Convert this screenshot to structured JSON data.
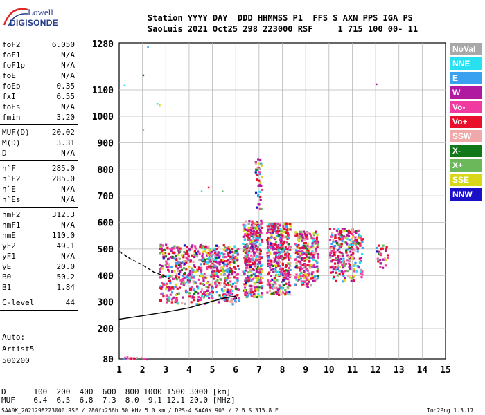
{
  "logo": {
    "line1": "Lowell",
    "line2": "DIGISONDE"
  },
  "header": {
    "line1": "Station YYYY DAY  DDD HHMMSS P1  FFS S AXN PPS IGA PS",
    "line2": "SaoLuis 2021 Oct25 298 223000 RSF     1 715 100 00- 11"
  },
  "params": [
    {
      "group": [
        {
          "name": "foF2",
          "value": "6.050"
        },
        {
          "name": "foF1",
          "value": "N/A"
        },
        {
          "name": "foF1p",
          "value": "N/A"
        },
        {
          "name": "foE",
          "value": "N/A"
        },
        {
          "name": "foEp",
          "value": "0.35"
        },
        {
          "name": "fxI",
          "value": "6.55"
        },
        {
          "name": "foEs",
          "value": "N/A"
        },
        {
          "name": "fmin",
          "value": "3.20"
        }
      ]
    },
    {
      "group": [
        {
          "name": "MUF(D)",
          "value": "20.02"
        },
        {
          "name": "M(D)",
          "value": "3.31"
        },
        {
          "name": "D",
          "value": "N/A"
        }
      ]
    },
    {
      "group": [
        {
          "name": "h`F",
          "value": "285.0"
        },
        {
          "name": "h`F2",
          "value": "285.0"
        },
        {
          "name": "h`E",
          "value": "N/A"
        },
        {
          "name": "h`Es",
          "value": "N/A"
        }
      ]
    },
    {
      "group": [
        {
          "name": "hmF2",
          "value": "312.3"
        },
        {
          "name": "hmF1",
          "value": "N/A"
        },
        {
          "name": "hmE",
          "value": "110.0"
        },
        {
          "name": "yF2",
          "value": "49.1"
        },
        {
          "name": "yF1",
          "value": "N/A"
        },
        {
          "name": "yE",
          "value": "20.0"
        },
        {
          "name": "B0",
          "value": "50.2"
        },
        {
          "name": "B1",
          "value": "1.84"
        }
      ]
    },
    {
      "group": [
        {
          "name": "C-level",
          "value": "44"
        }
      ]
    }
  ],
  "auto": {
    "line1": "Auto:",
    "line2": "Artist5",
    "line3": "500200"
  },
  "legend": [
    {
      "label": "NoVal",
      "color": "#a8a8a8"
    },
    {
      "label": "NNE",
      "color": "#28e0f0"
    },
    {
      "label": "E",
      "color": "#3aa0f0"
    },
    {
      "label": "W",
      "color": "#b01aa0"
    },
    {
      "label": "Vo-",
      "color": "#f03aa0"
    },
    {
      "label": "Vo+",
      "color": "#e8102a"
    },
    {
      "label": "SSW",
      "color": "#f0a8a8"
    },
    {
      "label": "X-",
      "color": "#107818"
    },
    {
      "label": "X+",
      "color": "#6ab85a"
    },
    {
      "label": "SSE",
      "color": "#d8d818"
    },
    {
      "label": "NNW",
      "color": "#1a10c8"
    }
  ],
  "muf_table": {
    "d_label": "D",
    "d_values": [
      "100",
      "200",
      "400",
      "600",
      "800",
      "1000",
      "1500",
      "3000"
    ],
    "d_unit": "[km]",
    "muf_label": "MUF",
    "muf_values": [
      "6.4",
      "6.5",
      "6.8",
      "7.3",
      "8.0",
      "9.1",
      "12.1",
      "20.0"
    ],
    "muf_unit": "[MHz]"
  },
  "footer": "SAA0K_2021298223000.RSF / 280fx256h 50 kHz 5.0 km / DPS-4 SAA0K 903 / 2.6 S 315.8 E",
  "version": "Ion2Png 1.3.17",
  "chart_data": {
    "type": "scatter",
    "x_ticks": [
      "1",
      "2",
      "3",
      "4",
      "5",
      "6",
      "7",
      "8",
      "9",
      "10",
      "11",
      "12",
      "13",
      "14",
      "15"
    ],
    "y_ticks": [
      "80",
      "200",
      "300",
      "400",
      "500",
      "600",
      "700",
      "800",
      "900",
      "1000",
      "1100",
      "1280"
    ],
    "xlim": [
      1,
      15
    ],
    "ylim": [
      80,
      1280
    ],
    "y_scale": "nonlinear (1280 top, 1100, then 100 km steps to 200, 80 bottom)",
    "grid": true,
    "x_unit": "MHz",
    "y_unit": "km",
    "traces": [
      {
        "kind": "profile",
        "style": "solid",
        "points": [
          [
            1.0,
            235
          ],
          [
            2.0,
            248
          ],
          [
            3.0,
            262
          ],
          [
            4.0,
            278
          ],
          [
            4.8,
            298
          ],
          [
            5.5,
            315
          ],
          [
            6.0,
            322
          ],
          [
            6.05,
            310
          ]
        ]
      },
      {
        "kind": "profile",
        "style": "dashed",
        "points": [
          [
            1.0,
            490
          ],
          [
            1.5,
            462
          ],
          [
            2.0,
            440
          ],
          [
            2.5,
            412
          ],
          [
            2.9,
            400
          ],
          [
            3.3,
            380
          ]
        ]
      }
    ],
    "echo_regions": [
      {
        "x": [
          2.7,
          6.1
        ],
        "y": [
          295,
          520
        ]
      },
      {
        "x": [
          6.3,
          7.1
        ],
        "y": [
          320,
          610
        ]
      },
      {
        "x": [
          7.3,
          8.3
        ],
        "y": [
          330,
          600
        ]
      },
      {
        "x": [
          8.5,
          9.5
        ],
        "y": [
          360,
          570
        ]
      },
      {
        "x": [
          10.0,
          11.4
        ],
        "y": [
          380,
          580
        ]
      },
      {
        "x": [
          6.8,
          7.1
        ],
        "y": [
          650,
          850
        ]
      },
      {
        "x": [
          12.0,
          12.5
        ],
        "y": [
          430,
          520
        ]
      }
    ]
  }
}
